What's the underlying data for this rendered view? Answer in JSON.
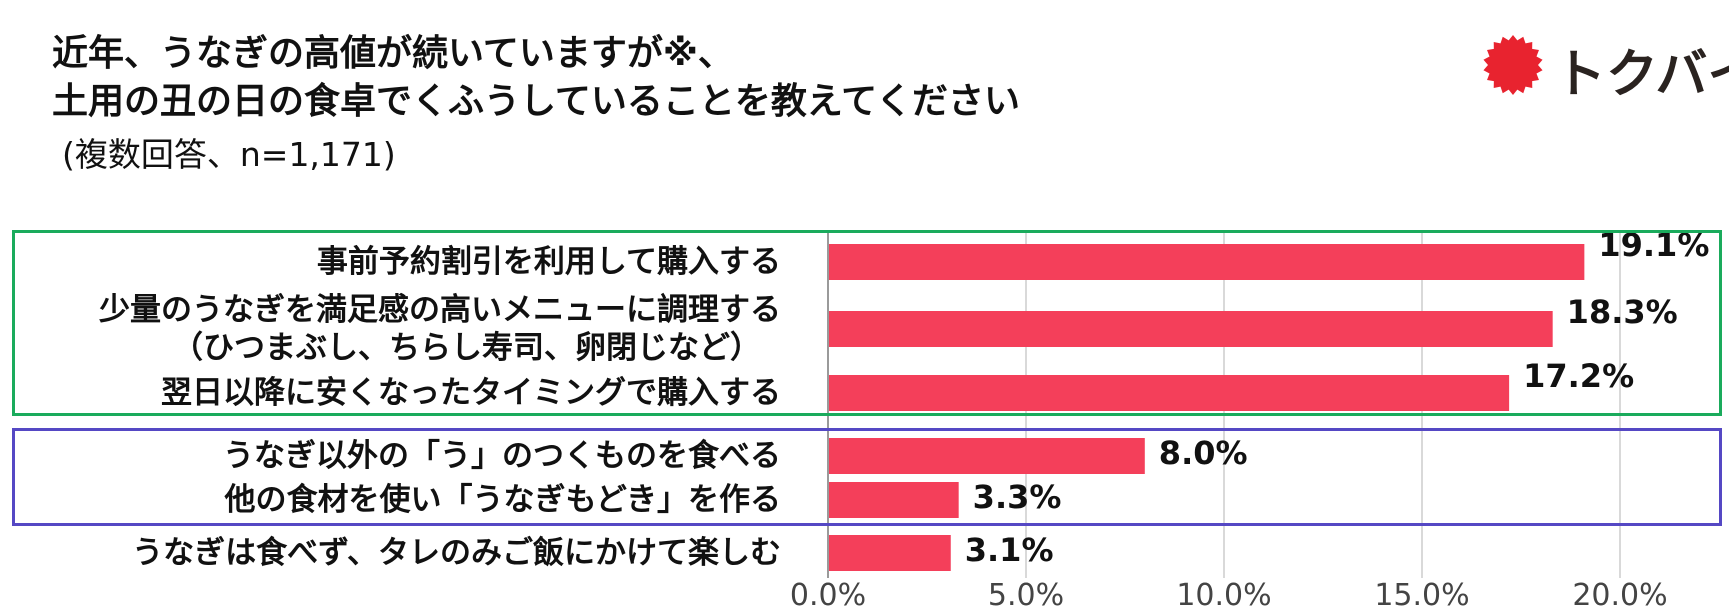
{
  "header": {
    "title_line1": "近年、うなぎの高値が続いていますが※、",
    "title_line2": "土用の丑の日の食卓でくふうしていることを教えてください",
    "subtitle": "(複数回答、n=1,171)"
  },
  "logo": {
    "text": "トクバイ",
    "burst_color": "#e8232f"
  },
  "colors": {
    "bar": "#f43f5a",
    "group1_border": "#1aab5c",
    "group2_border": "#5548c4",
    "grid": "#d9d9d9"
  },
  "chart_data": {
    "type": "bar",
    "orientation": "horizontal",
    "categories": [
      [
        "事前予約割引を利用して購入する"
      ],
      [
        "少量のうなぎを満足感の高いメニューに調理する",
        "（ひつまぶし、ちらし寿司、卵閉じなど）"
      ],
      [
        "翌日以降に安くなったタイミングで購入する"
      ],
      [
        "うなぎ以外の「う」のつくものを食べる"
      ],
      [
        "他の食材を使い「うなぎもどき」を作る"
      ],
      [
        "うなぎは食べず、タレのみご飯にかけて楽しむ"
      ]
    ],
    "values": [
      19.1,
      18.3,
      17.2,
      8.0,
      3.3,
      3.1
    ],
    "value_labels": [
      "19.1%",
      "18.3%",
      "17.2%",
      "8.0%",
      "3.3%",
      "3.1%"
    ],
    "xlim": [
      0,
      20
    ],
    "x_ticks": [
      "0.0%",
      "5.0%",
      "10.0%",
      "15.0%",
      "20.0%"
    ],
    "x_tick_values": [
      0,
      5,
      10,
      15,
      20
    ],
    "grid": true,
    "groups": [
      {
        "name": "",
        "items": [
          0,
          1,
          2
        ],
        "color": "#1aab5c"
      },
      {
        "name": "",
        "items": [
          3,
          4
        ],
        "color": "#5548c4"
      }
    ]
  }
}
